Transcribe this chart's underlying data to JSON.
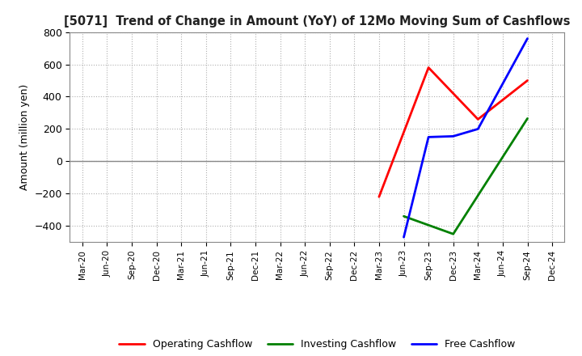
{
  "title": "[5071]  Trend of Change in Amount (YoY) of 12Mo Moving Sum of Cashflows",
  "ylabel": "Amount (million yen)",
  "ylim": [
    -500,
    800
  ],
  "yticks": [
    -400,
    -200,
    0,
    200,
    400,
    600,
    800
  ],
  "background_color": "#ffffff",
  "grid_color": "#b0b0b0",
  "x_labels": [
    "Mar-20",
    "Jun-20",
    "Sep-20",
    "Dec-20",
    "Mar-21",
    "Jun-21",
    "Sep-21",
    "Dec-21",
    "Mar-22",
    "Jun-22",
    "Sep-22",
    "Dec-22",
    "Mar-23",
    "Jun-23",
    "Sep-23",
    "Dec-23",
    "Mar-24",
    "Jun-24",
    "Sep-24",
    "Dec-24"
  ],
  "operating": {
    "label": "Operating Cashflow",
    "color": "#ff0000",
    "values": [
      null,
      null,
      null,
      null,
      null,
      null,
      null,
      null,
      null,
      null,
      null,
      null,
      -220,
      null,
      580,
      null,
      260,
      null,
      500,
      null
    ]
  },
  "investing": {
    "label": "Investing Cashflow",
    "color": "#008000",
    "values": [
      null,
      null,
      null,
      null,
      null,
      null,
      null,
      null,
      null,
      null,
      null,
      null,
      null,
      -340,
      null,
      -450,
      null,
      null,
      265,
      null
    ]
  },
  "free": {
    "label": "Free Cashflow",
    "color": "#0000ff",
    "values": [
      null,
      null,
      null,
      null,
      null,
      null,
      null,
      null,
      null,
      null,
      null,
      null,
      null,
      -470,
      150,
      155,
      200,
      null,
      760,
      null
    ]
  },
  "legend_entries": [
    {
      "label": "Operating Cashflow",
      "color": "#ff0000"
    },
    {
      "label": "Investing Cashflow",
      "color": "#008000"
    },
    {
      "label": "Free Cashflow",
      "color": "#0000ff"
    }
  ]
}
